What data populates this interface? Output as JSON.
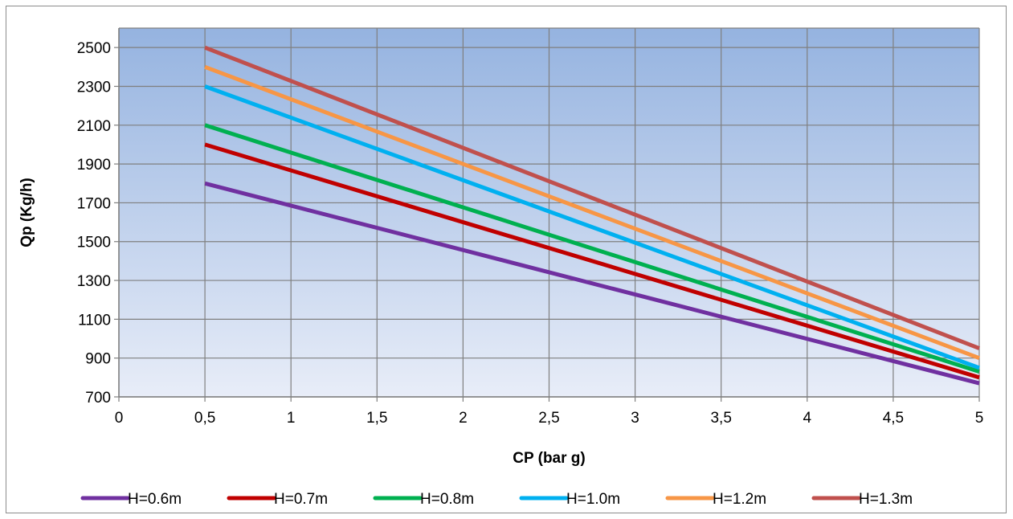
{
  "chart_data": {
    "type": "line",
    "title": "",
    "xlabel": "CP (bar g)",
    "ylabel": "Qp (Kg/h)",
    "xlim": [
      0,
      5
    ],
    "ylim": [
      700,
      2600
    ],
    "x_ticks": [
      "0",
      "0,5",
      "1",
      "1,5",
      "2",
      "2,5",
      "3",
      "3,5",
      "4",
      "4,5",
      "5"
    ],
    "x_tick_values": [
      0,
      0.5,
      1,
      1.5,
      2,
      2.5,
      3,
      3.5,
      4,
      4.5,
      5
    ],
    "y_ticks": [
      "700",
      "900",
      "1100",
      "1300",
      "1500",
      "1700",
      "1900",
      "2100",
      "2300",
      "2500"
    ],
    "y_tick_values": [
      700,
      900,
      1100,
      1300,
      1500,
      1700,
      1900,
      2100,
      2300,
      2500
    ],
    "grid": true,
    "legend_position": "bottom",
    "plot_background": [
      "#95b3e0",
      "#e8edf8"
    ],
    "series": [
      {
        "name": "H=0.6m",
        "color": "#7030a0",
        "points": [
          [
            0.5,
            1800
          ],
          [
            5,
            770
          ]
        ]
      },
      {
        "name": "H=0.7m",
        "color": "#c00000",
        "points": [
          [
            0.5,
            2000
          ],
          [
            5,
            800
          ]
        ]
      },
      {
        "name": "H=0.8m",
        "color": "#00b050",
        "points": [
          [
            0.5,
            2100
          ],
          [
            5,
            830
          ]
        ]
      },
      {
        "name": "H=1.0m",
        "color": "#00b0f0",
        "points": [
          [
            0.5,
            2300
          ],
          [
            5,
            850
          ]
        ]
      },
      {
        "name": "H=1.2m",
        "color": "#f79646",
        "points": [
          [
            0.5,
            2400
          ],
          [
            5,
            900
          ]
        ]
      },
      {
        "name": "H=1.3m",
        "color": "#c0504d",
        "points": [
          [
            0.5,
            2500
          ],
          [
            5,
            950
          ]
        ]
      }
    ]
  }
}
